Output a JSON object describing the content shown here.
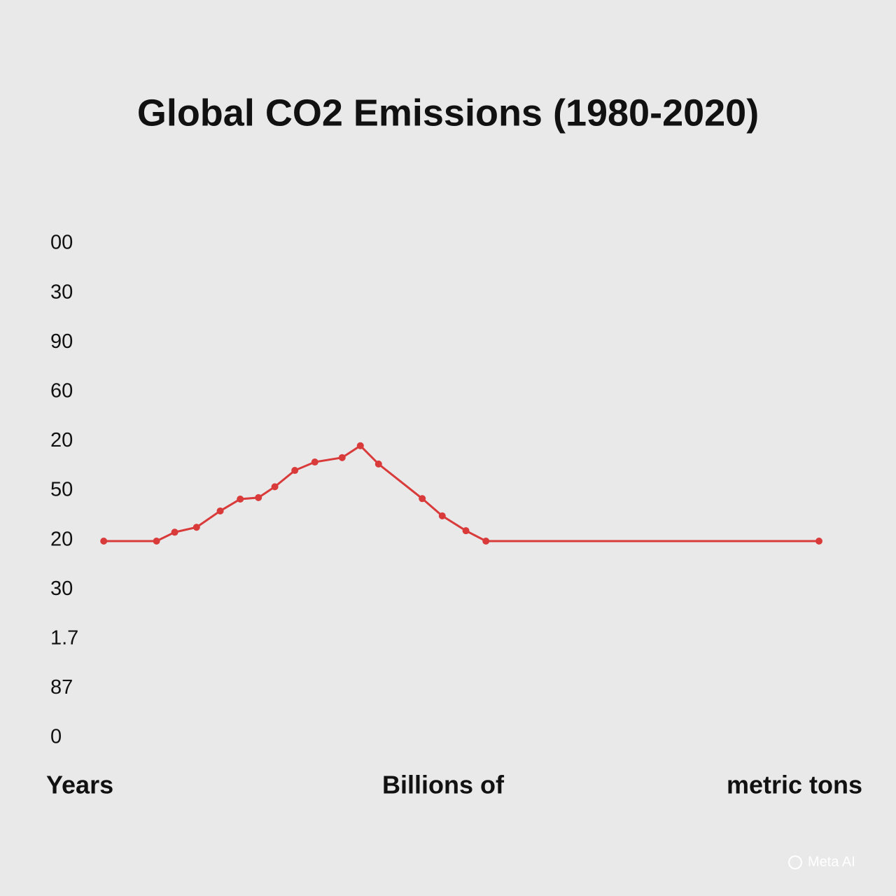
{
  "chart_data": {
    "type": "line",
    "title": "Global CO2 Emissions (1980-2020)",
    "axis_labels": [
      "Years",
      "Billions of",
      "metric tons"
    ],
    "watermark": "Meta AI",
    "color": "#d93a3a",
    "x": [
      1980.7,
      1983.6,
      1984.6,
      1985.8,
      1987.1,
      1988.2,
      1989.2,
      1990.1,
      1991.2,
      1992.3,
      1993.8,
      1994.8,
      1995.8,
      1998.2,
      1999.3,
      2000.6,
      2001.7,
      2020
    ],
    "values": [
      3.98,
      3.98,
      4.16,
      4.26,
      4.59,
      4.83,
      4.86,
      5.08,
      5.41,
      5.58,
      5.67,
      5.91,
      5.54,
      4.84,
      4.49,
      4.19,
      3.98,
      3.98
    ],
    "xlim": [
      1980,
      2020
    ],
    "ylim": [
      0,
      10
    ],
    "yticks": [
      {
        "value": 0,
        "label": "0"
      },
      {
        "value": 1,
        "label": "87"
      },
      {
        "value": 2,
        "label": "1.7"
      },
      {
        "value": 3,
        "label": "30"
      },
      {
        "value": 4,
        "label": "20"
      },
      {
        "value": 5,
        "label": "50"
      },
      {
        "value": 6,
        "label": "20"
      },
      {
        "value": 7,
        "label": "60"
      },
      {
        "value": 8,
        "label": "90"
      },
      {
        "value": 9,
        "label": "30"
      },
      {
        "value": 10,
        "label": "00"
      }
    ],
    "grid": false
  }
}
